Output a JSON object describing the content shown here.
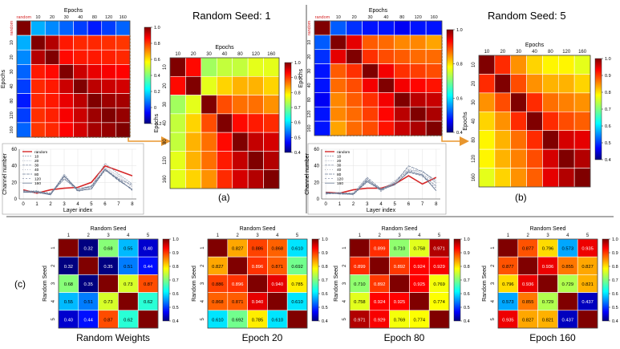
{
  "figure": {
    "panel_a_title": "Random Seed: 1",
    "panel_b_title": "Random Seed: 5",
    "panel_a_label": "(a)",
    "panel_b_label": "(b)",
    "panel_c_label": "(c)"
  },
  "colors": {
    "divider": "#555555",
    "highlight_box": "#e8962e",
    "random_line": "#d62728",
    "epoch_lines": "#7f8fa6"
  },
  "chart_data": [
    {
      "id": "seed1-full-heatmap",
      "type": "heatmap",
      "xlabel": "Epochs",
      "ylabel": "Epochs",
      "x_categories": [
        "random",
        "10",
        "20",
        "30",
        "40",
        "80",
        "120",
        "160"
      ],
      "y_categories": [
        "random",
        "10",
        "20",
        "30",
        "40",
        "80",
        "120",
        "160"
      ],
      "colorbar_ticks": [
        "1.0",
        "0.8",
        "0.6",
        "0.4",
        "0.2",
        "0",
        "-0.2"
      ],
      "vmin": -0.35,
      "vmax": 1.0,
      "values": [
        [
          1.0,
          0.05,
          0.0,
          -0.05,
          -0.1,
          -0.15,
          -0.1,
          -0.05
        ],
        [
          0.05,
          1.0,
          0.93,
          0.8,
          0.78,
          0.78,
          0.77,
          0.76
        ],
        [
          0.0,
          0.93,
          1.0,
          0.82,
          0.8,
          0.8,
          0.79,
          0.78
        ],
        [
          -0.05,
          0.8,
          0.82,
          1.0,
          0.9,
          0.86,
          0.84,
          0.83
        ],
        [
          -0.1,
          0.78,
          0.8,
          0.9,
          1.0,
          0.92,
          0.9,
          0.89
        ],
        [
          -0.15,
          0.78,
          0.8,
          0.86,
          0.92,
          1.0,
          0.96,
          0.95
        ],
        [
          -0.1,
          0.77,
          0.79,
          0.84,
          0.9,
          0.96,
          1.0,
          0.97
        ],
        [
          -0.05,
          0.76,
          0.78,
          0.83,
          0.89,
          0.95,
          0.97,
          1.0
        ]
      ]
    },
    {
      "id": "seed1-zoom-heatmap",
      "type": "heatmap",
      "xlabel": "Epochs",
      "ylabel": "Epochs",
      "x_categories": [
        "10",
        "20",
        "30",
        "40",
        "80",
        "120",
        "160"
      ],
      "y_categories": [
        "10",
        "20",
        "30",
        "40",
        "80",
        "120",
        "160"
      ],
      "colorbar_ticks": [
        "1.0",
        "0.9",
        "0.8",
        "0.7",
        "0.6",
        "0.5",
        "0.4"
      ],
      "vmin": 0.4,
      "vmax": 1.0,
      "values": [
        [
          1.0,
          0.92,
          0.72,
          0.74,
          0.74,
          0.76,
          0.76
        ],
        [
          0.92,
          1.0,
          0.76,
          0.8,
          0.82,
          0.82,
          0.8
        ],
        [
          0.72,
          0.76,
          1.0,
          0.88,
          0.86,
          0.86,
          0.84
        ],
        [
          0.74,
          0.8,
          0.88,
          1.0,
          0.92,
          0.91,
          0.9
        ],
        [
          0.74,
          0.82,
          0.86,
          0.92,
          1.0,
          0.96,
          0.95
        ],
        [
          0.76,
          0.82,
          0.86,
          0.91,
          0.96,
          1.0,
          0.97
        ],
        [
          0.76,
          0.8,
          0.84,
          0.9,
          0.95,
          0.97,
          1.0
        ]
      ]
    },
    {
      "id": "seed5-full-heatmap",
      "type": "heatmap",
      "xlabel": "Epochs",
      "ylabel": "Epochs",
      "x_categories": [
        "random",
        "10",
        "20",
        "30",
        "40",
        "80",
        "120",
        "160"
      ],
      "y_categories": [
        "random",
        "10",
        "20",
        "30",
        "40",
        "80",
        "120",
        "160"
      ],
      "colorbar_ticks": [
        "1.0",
        "0.8",
        "0.6",
        "0.4"
      ],
      "vmin": 0.3,
      "vmax": 1.0,
      "values": [
        [
          1.0,
          0.45,
          0.42,
          0.4,
          0.4,
          0.38,
          0.4,
          0.4
        ],
        [
          0.45,
          1.0,
          0.93,
          0.85,
          0.84,
          0.82,
          0.82,
          0.8
        ],
        [
          0.42,
          0.93,
          1.0,
          0.88,
          0.86,
          0.85,
          0.84,
          0.84
        ],
        [
          0.4,
          0.85,
          0.88,
          1.0,
          0.92,
          0.88,
          0.87,
          0.86
        ],
        [
          0.4,
          0.84,
          0.86,
          0.92,
          1.0,
          0.92,
          0.91,
          0.9
        ],
        [
          0.38,
          0.82,
          0.85,
          0.88,
          0.92,
          1.0,
          0.96,
          0.95
        ],
        [
          0.4,
          0.82,
          0.84,
          0.87,
          0.91,
          0.96,
          1.0,
          0.97
        ],
        [
          0.4,
          0.8,
          0.84,
          0.86,
          0.9,
          0.95,
          0.97,
          1.0
        ]
      ]
    },
    {
      "id": "seed5-zoom-heatmap",
      "type": "heatmap",
      "xlabel": "Epochs",
      "ylabel": "Epochs",
      "x_categories": [
        "10",
        "20",
        "30",
        "40",
        "80",
        "120",
        "160"
      ],
      "y_categories": [
        "10",
        "20",
        "30",
        "40",
        "80",
        "120",
        "160"
      ],
      "colorbar_ticks": [
        "1.0",
        "0.9",
        "0.8",
        "0.7",
        "0.6",
        "0.5",
        "0.4"
      ],
      "vmin": 0.4,
      "vmax": 1.0,
      "values": [
        [
          1.0,
          0.9,
          0.84,
          0.8,
          0.78,
          0.78,
          0.76
        ],
        [
          0.9,
          1.0,
          0.88,
          0.84,
          0.82,
          0.82,
          0.8
        ],
        [
          0.84,
          0.88,
          1.0,
          0.9,
          0.86,
          0.85,
          0.84
        ],
        [
          0.8,
          0.84,
          0.9,
          1.0,
          0.9,
          0.88,
          0.87
        ],
        [
          0.78,
          0.82,
          0.86,
          0.9,
          1.0,
          0.95,
          0.94
        ],
        [
          0.78,
          0.82,
          0.85,
          0.88,
          0.95,
          1.0,
          0.97
        ],
        [
          0.76,
          0.8,
          0.84,
          0.87,
          0.94,
          0.97,
          1.0
        ]
      ]
    },
    {
      "id": "seed1-channel-lines",
      "type": "line",
      "xlabel": "Layer index",
      "ylabel": "Channel number",
      "x": [
        0,
        1,
        2,
        3,
        4,
        5,
        6,
        7,
        8
      ],
      "xlim": [
        -0.3,
        8.3
      ],
      "ylim": [
        0,
        60
      ],
      "yticks": [
        0,
        20,
        40,
        60
      ],
      "legend_position": "top-left",
      "series": [
        {
          "name": "random",
          "values": [
            11,
            7,
            11,
            13,
            14,
            20,
            40,
            34,
            28
          ]
        },
        {
          "name": "10",
          "values": [
            9,
            10,
            5,
            30,
            10,
            15,
            43,
            30,
            18
          ]
        },
        {
          "name": "20",
          "values": [
            10,
            8,
            6,
            28,
            11,
            14,
            38,
            28,
            15
          ]
        },
        {
          "name": "30",
          "values": [
            8,
            9,
            7,
            27,
            12,
            16,
            36,
            24,
            17
          ]
        },
        {
          "name": "40",
          "values": [
            9,
            7,
            6,
            26,
            10,
            14,
            37,
            26,
            14
          ]
        },
        {
          "name": "80",
          "values": [
            10,
            9,
            6,
            24,
            12,
            15,
            35,
            22,
            12
          ]
        },
        {
          "name": "120",
          "values": [
            9,
            8,
            7,
            25,
            9,
            13,
            34,
            25,
            10
          ]
        },
        {
          "name": "160",
          "values": [
            8,
            8,
            5,
            28,
            10,
            12,
            36,
            23,
            11
          ]
        }
      ]
    },
    {
      "id": "seed5-channel-lines",
      "type": "line",
      "xlabel": "Layer index",
      "ylabel": "Channel number",
      "x": [
        0,
        1,
        2,
        3,
        4,
        5,
        6,
        7,
        8
      ],
      "xlim": [
        -0.3,
        8.3
      ],
      "ylim": [
        0,
        60
      ],
      "yticks": [
        0,
        20,
        40,
        60
      ],
      "legend_position": "top-left",
      "series": [
        {
          "name": "random",
          "values": [
            8,
            7,
            11,
            13,
            13,
            18,
            28,
            18,
            26
          ]
        },
        {
          "name": "10",
          "values": [
            6,
            8,
            5,
            24,
            10,
            20,
            34,
            34,
            19
          ]
        },
        {
          "name": "20",
          "values": [
            7,
            6,
            6,
            22,
            11,
            22,
            36,
            30,
            20
          ]
        },
        {
          "name": "30",
          "values": [
            6,
            7,
            7,
            26,
            12,
            18,
            32,
            28,
            16
          ]
        },
        {
          "name": "40",
          "values": [
            7,
            6,
            5,
            20,
            10,
            21,
            38,
            31,
            14
          ]
        },
        {
          "name": "80",
          "values": [
            8,
            6,
            6,
            23,
            12,
            19,
            40,
            33,
            22
          ]
        },
        {
          "name": "120",
          "values": [
            6,
            7,
            5,
            25,
            9,
            20,
            35,
            27,
            13
          ]
        },
        {
          "name": "160",
          "values": [
            7,
            7,
            6,
            21,
            11,
            17,
            33,
            29,
            10
          ]
        }
      ]
    },
    {
      "id": "seed-random-weights",
      "type": "heatmap",
      "caption": "Random Weights",
      "xlabel": "Random Seed",
      "ylabel": "Random Seed",
      "x_categories": [
        "1",
        "2",
        "3",
        "4",
        "5"
      ],
      "y_categories": [
        "1",
        "2",
        "3",
        "4",
        "5"
      ],
      "colorbar_ticks": [
        "1.0",
        "0.9",
        "0.8",
        "0.7",
        "0.6",
        "0.5",
        "0.4"
      ],
      "vmin": 0.35,
      "vmax": 1.0,
      "show_diagonal_labels": false,
      "values": [
        [
          1.0,
          0.32,
          0.68,
          0.55,
          0.4
        ],
        [
          0.32,
          1.0,
          0.35,
          0.51,
          0.44
        ],
        [
          0.68,
          0.35,
          1.0,
          0.73,
          0.87
        ],
        [
          0.55,
          0.51,
          0.73,
          1.0,
          0.62
        ],
        [
          0.4,
          0.44,
          0.87,
          0.62,
          1.0
        ]
      ],
      "labels": [
        [
          "",
          "0.32",
          "0.68",
          "0.55",
          "0.40"
        ],
        [
          "0.32",
          "",
          "0.35",
          "0.51",
          "0.44"
        ],
        [
          "0.68",
          "0.35",
          "",
          "0.73",
          "0.87"
        ],
        [
          "0.55",
          "0.51",
          "0.73",
          "",
          "0.62"
        ],
        [
          "0.40",
          "0.44",
          "0.87",
          "0.62",
          ""
        ]
      ]
    },
    {
      "id": "seed-epoch-20",
      "type": "heatmap",
      "caption": "Epoch 20",
      "xlabel": "Random Seed",
      "ylabel": "Random Seed",
      "x_categories": [
        "1",
        "2",
        "3",
        "4",
        "5"
      ],
      "y_categories": [
        "1",
        "2",
        "3",
        "4",
        "5"
      ],
      "colorbar_ticks": [
        "1.0",
        "0.9",
        "0.8",
        "0.7",
        "0.6",
        "0.5",
        "0.4"
      ],
      "vmin": 0.4,
      "vmax": 1.0,
      "values": [
        [
          1.0,
          0.827,
          0.886,
          0.868,
          0.61
        ],
        [
          0.827,
          1.0,
          0.896,
          0.871,
          0.692
        ],
        [
          0.886,
          0.896,
          1.0,
          0.94,
          0.785
        ],
        [
          0.868,
          0.871,
          0.94,
          1.0,
          0.61
        ],
        [
          0.61,
          0.692,
          0.785,
          0.61,
          1.0
        ]
      ],
      "labels": [
        [
          "",
          "0.827",
          "0.886",
          "0.868",
          "0.610"
        ],
        [
          "0.827",
          "",
          "0.896",
          "0.871",
          "0.692"
        ],
        [
          "0.886",
          "0.896",
          "",
          "0.940",
          "0.785"
        ],
        [
          "0.868",
          "0.871",
          "0.940",
          "",
          "0.610"
        ],
        [
          "0.610",
          "0.692",
          "0.785",
          "0.610",
          ""
        ]
      ]
    },
    {
      "id": "seed-epoch-80",
      "type": "heatmap",
      "caption": "Epoch 80",
      "xlabel": "Random Seed",
      "ylabel": "Random Seed",
      "x_categories": [
        "1",
        "2",
        "3",
        "4",
        "5"
      ],
      "y_categories": [
        "1",
        "2",
        "3",
        "4",
        "5"
      ],
      "colorbar_ticks": [
        "1.0",
        "0.9",
        "0.8",
        "0.7",
        "0.6",
        "0.5",
        "0.4"
      ],
      "vmin": 0.4,
      "vmax": 1.0,
      "values": [
        [
          1.0,
          0.899,
          0.71,
          0.758,
          0.971
        ],
        [
          0.899,
          1.0,
          0.892,
          0.924,
          0.929
        ],
        [
          0.71,
          0.892,
          1.0,
          0.925,
          0.769
        ],
        [
          0.758,
          0.924,
          0.925,
          1.0,
          0.774
        ],
        [
          0.971,
          0.929,
          0.769,
          0.774,
          1.0
        ]
      ],
      "labels": [
        [
          "",
          "0.899",
          "0.710",
          "0.758",
          "0.971"
        ],
        [
          "0.899",
          "",
          "0.892",
          "0.924",
          "0.929"
        ],
        [
          "0.710",
          "0.892",
          "",
          "0.925",
          "0.769"
        ],
        [
          "0.758",
          "0.924",
          "0.925",
          "",
          "0.774"
        ],
        [
          "0.971",
          "0.929",
          "0.769",
          "0.774",
          ""
        ]
      ]
    },
    {
      "id": "seed-epoch-160",
      "type": "heatmap",
      "caption": "Epoch 160",
      "xlabel": "Random Seed",
      "ylabel": "Random Seed",
      "x_categories": [
        "1",
        "2",
        "3",
        "4",
        "5"
      ],
      "y_categories": [
        "1",
        "2",
        "3",
        "4",
        "5"
      ],
      "colorbar_ticks": [
        "1.0",
        "0.9",
        "0.8",
        "0.7",
        "0.6",
        "0.5",
        "0.4"
      ],
      "vmin": 0.4,
      "vmax": 1.0,
      "values": [
        [
          1.0,
          0.877,
          0.796,
          0.573,
          0.935
        ],
        [
          0.877,
          1.0,
          0.936,
          0.855,
          0.827
        ],
        [
          0.796,
          0.936,
          1.0,
          0.729,
          0.821
        ],
        [
          0.573,
          0.855,
          0.729,
          1.0,
          0.437
        ],
        [
          0.935,
          0.827,
          0.821,
          0.437,
          1.0
        ]
      ],
      "labels": [
        [
          "",
          "0.877",
          "0.796",
          "0.573",
          "0.935"
        ],
        [
          "0.877",
          "",
          "0.936",
          "0.855",
          "0.827"
        ],
        [
          "0.796",
          "0.936",
          "",
          "0.729",
          "0.821"
        ],
        [
          "0.573",
          "0.855",
          "0.729",
          "",
          "0.437"
        ],
        [
          "0.935",
          "0.827",
          "0.821",
          "0.437",
          ""
        ]
      ]
    }
  ]
}
